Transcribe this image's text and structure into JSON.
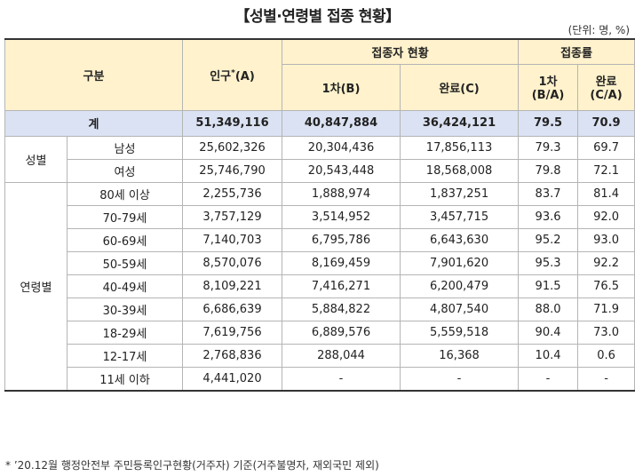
{
  "title": "【성별·연령별 접종 현황】",
  "unit": "(단위: 명, %)",
  "header": {
    "category": "구분",
    "population": "인구",
    "population_mark": "*",
    "population_suffix": "(A)",
    "vaccinated": "접종자 현황",
    "rate": "접종률",
    "first_dose": "1차(B)",
    "completed": "완료(C)",
    "first_rate_line1": "1차",
    "first_rate_line2": "(B/A)",
    "complete_rate_line1": "완료",
    "complete_rate_line2": "(C/A)"
  },
  "total": {
    "label": "계",
    "population": "51,349,116",
    "first": "40,847,884",
    "completed": "36,424,121",
    "first_rate": "79.5",
    "complete_rate": "70.9"
  },
  "gender": {
    "label": "성별",
    "rows": [
      {
        "label": "남성",
        "population": "25,602,326",
        "first": "20,304,436",
        "completed": "17,856,113",
        "first_rate": "79.3",
        "complete_rate": "69.7"
      },
      {
        "label": "여성",
        "population": "25,746,790",
        "first": "20,543,448",
        "completed": "18,568,008",
        "first_rate": "79.8",
        "complete_rate": "72.1"
      }
    ]
  },
  "age": {
    "label": "연령별",
    "rows": [
      {
        "label": "80세 이상",
        "population": "2,255,736",
        "first": "1,888,974",
        "completed": "1,837,251",
        "first_rate": "83.7",
        "complete_rate": "81.4"
      },
      {
        "label": "70-79세",
        "population": "3,757,129",
        "first": "3,514,952",
        "completed": "3,457,715",
        "first_rate": "93.6",
        "complete_rate": "92.0"
      },
      {
        "label": "60-69세",
        "population": "7,140,703",
        "first": "6,795,786",
        "completed": "6,643,630",
        "first_rate": "95.2",
        "complete_rate": "93.0"
      },
      {
        "label": "50-59세",
        "population": "8,570,076",
        "first": "8,169,459",
        "completed": "7,901,620",
        "first_rate": "95.3",
        "complete_rate": "92.2"
      },
      {
        "label": "40-49세",
        "population": "8,109,221",
        "first": "7,416,271",
        "completed": "6,200,479",
        "first_rate": "91.5",
        "complete_rate": "76.5"
      },
      {
        "label": "30-39세",
        "population": "6,686,639",
        "first": "5,884,822",
        "completed": "4,807,540",
        "first_rate": "88.0",
        "complete_rate": "71.9"
      },
      {
        "label": "18-29세",
        "population": "7,619,756",
        "first": "6,889,576",
        "completed": "5,559,518",
        "first_rate": "90.4",
        "complete_rate": "73.0"
      },
      {
        "label": "12-17세",
        "population": "2,768,836",
        "first": "288,044",
        "completed": "16,368",
        "first_rate": "10.4",
        "complete_rate": "0.6"
      },
      {
        "label": "11세 이하",
        "population": "4,441,020",
        "first": "-",
        "completed": "-",
        "first_rate": "-",
        "complete_rate": "-"
      }
    ]
  },
  "footnote": "* ’20.12월 행정안전부 주민등록인구현황(거주자) 기준(거주불명자, 재외국민 제외)"
}
